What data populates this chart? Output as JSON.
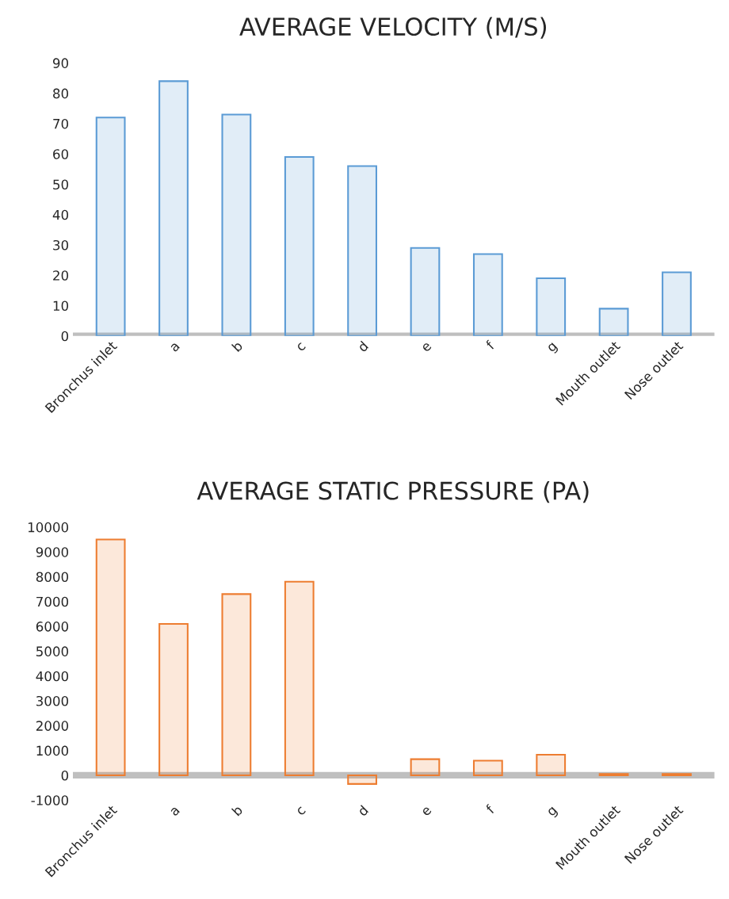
{
  "chart_data": [
    {
      "type": "bar",
      "title": "AVERAGE VELOCITY (M/S)",
      "categories": [
        "Bronchus inlet",
        "a",
        "b",
        "c",
        "d",
        "e",
        "f",
        "g",
        "Mouth outlet",
        "Nose outlet"
      ],
      "values": [
        72,
        84,
        73,
        59,
        56,
        29,
        27,
        19,
        9,
        21
      ],
      "color": "#5b9bd5",
      "ylim": [
        0,
        90
      ],
      "yticks": [
        0,
        10,
        20,
        30,
        40,
        50,
        60,
        70,
        80,
        90
      ],
      "grid": false
    },
    {
      "type": "bar",
      "title": "AVERAGE STATIC PRESSURE (PA)",
      "categories": [
        "Bronchus inlet",
        "a",
        "b",
        "c",
        "d",
        "e",
        "f",
        "g",
        "Mouth outlet",
        "Nose outlet"
      ],
      "values": [
        9500,
        6100,
        7300,
        7800,
        -350,
        650,
        590,
        830,
        50,
        50
      ],
      "color": "#ed7d31",
      "ylim": [
        -1000,
        10000
      ],
      "yticks": [
        -1000,
        0,
        1000,
        2000,
        3000,
        4000,
        5000,
        6000,
        7000,
        8000,
        9000,
        10000
      ],
      "grid": false
    }
  ]
}
